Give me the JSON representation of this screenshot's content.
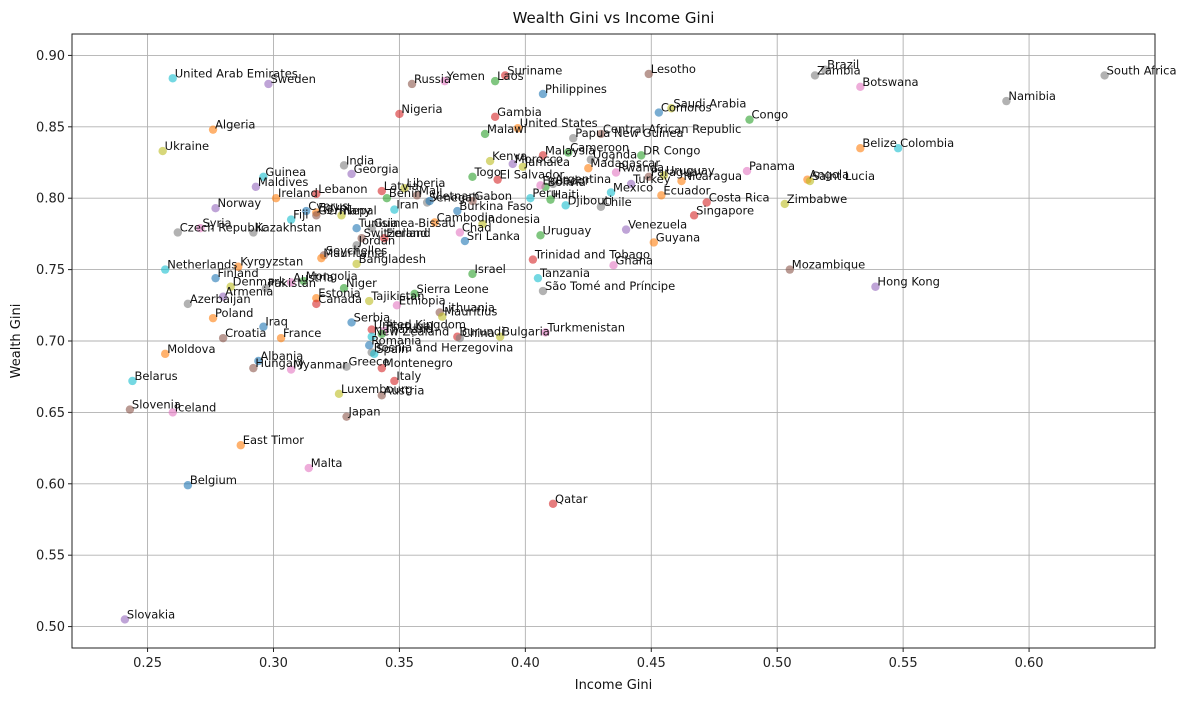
{
  "chart_data": {
    "type": "scatter",
    "title": "Wealth Gini vs Income Gini",
    "xlabel": "Income Gini",
    "ylabel": "Wealth Gini",
    "xlim": [
      0.22,
      0.65
    ],
    "ylim": [
      0.485,
      0.915
    ],
    "xticks": [
      0.25,
      0.3,
      0.35,
      0.4,
      0.45,
      0.5,
      0.55,
      0.6
    ],
    "xtick_labels": [
      "0.25",
      "0.30",
      "0.35",
      "0.40",
      "0.45",
      "0.50",
      "0.55",
      "0.60"
    ],
    "yticks": [
      0.5,
      0.55,
      0.6,
      0.65,
      0.7,
      0.75,
      0.8,
      0.85,
      0.9
    ],
    "ytick_labels": [
      "0.50",
      "0.55",
      "0.60",
      "0.65",
      "0.70",
      "0.75",
      "0.80",
      "0.85",
      "0.90"
    ],
    "grid": true,
    "palette": [
      "#1f77b4",
      "#ff7f0e",
      "#2ca02c",
      "#d62728",
      "#9467bd",
      "#8c564b",
      "#e377c2",
      "#7f7f7f",
      "#bcbd22",
      "#17becf"
    ],
    "points": [
      {
        "label": "United Arab Emirates",
        "x": 0.26,
        "y": 0.884,
        "c": 9
      },
      {
        "label": "Sweden",
        "x": 0.298,
        "y": 0.88,
        "c": 4
      },
      {
        "label": "Russia",
        "x": 0.355,
        "y": 0.88,
        "c": 5
      },
      {
        "label": "Yemen",
        "x": 0.368,
        "y": 0.882,
        "c": 6
      },
      {
        "label": "Laos",
        "x": 0.388,
        "y": 0.882,
        "c": 2
      },
      {
        "label": "Suriname",
        "x": 0.392,
        "y": 0.886,
        "c": 3
      },
      {
        "label": "Philippines",
        "x": 0.407,
        "y": 0.873,
        "c": 0
      },
      {
        "label": "Lesotho",
        "x": 0.449,
        "y": 0.887,
        "c": 5
      },
      {
        "label": "Brazil",
        "x": 0.519,
        "y": 0.89,
        "c": 7
      },
      {
        "label": "Zambia",
        "x": 0.515,
        "y": 0.886,
        "c": 7
      },
      {
        "label": "Botswana",
        "x": 0.533,
        "y": 0.878,
        "c": 6
      },
      {
        "label": "South Africa",
        "x": 0.63,
        "y": 0.886,
        "c": 7
      },
      {
        "label": "Namibia",
        "x": 0.591,
        "y": 0.868,
        "c": 7
      },
      {
        "label": "Nigeria",
        "x": 0.35,
        "y": 0.859,
        "c": 3
      },
      {
        "label": "Gambia",
        "x": 0.388,
        "y": 0.857,
        "c": 3
      },
      {
        "label": "United States",
        "x": 0.397,
        "y": 0.849,
        "c": 1
      },
      {
        "label": "Malawi",
        "x": 0.384,
        "y": 0.845,
        "c": 2
      },
      {
        "label": "Algeria",
        "x": 0.276,
        "y": 0.848,
        "c": 1
      },
      {
        "label": "Papua New Guinea",
        "x": 0.419,
        "y": 0.842,
        "c": 7
      },
      {
        "label": "Central African Republic",
        "x": 0.43,
        "y": 0.845,
        "c": 5
      },
      {
        "label": "Comoros",
        "x": 0.453,
        "y": 0.86,
        "c": 0
      },
      {
        "label": "Saudi Arabia",
        "x": 0.458,
        "y": 0.863,
        "c": 8
      },
      {
        "label": "Congo",
        "x": 0.489,
        "y": 0.855,
        "c": 2
      },
      {
        "label": "Ukraine",
        "x": 0.256,
        "y": 0.833,
        "c": 8
      },
      {
        "label": "Belize",
        "x": 0.533,
        "y": 0.835,
        "c": 1
      },
      {
        "label": "Colombia",
        "x": 0.548,
        "y": 0.835,
        "c": 9
      },
      {
        "label": "India",
        "x": 0.328,
        "y": 0.823,
        "c": 7
      },
      {
        "label": "Georgia",
        "x": 0.331,
        "y": 0.817,
        "c": 4
      },
      {
        "label": "Guinea",
        "x": 0.296,
        "y": 0.815,
        "c": 9
      },
      {
        "label": "Maldives",
        "x": 0.293,
        "y": 0.808,
        "c": 4
      },
      {
        "label": "Togo",
        "x": 0.379,
        "y": 0.815,
        "c": 2
      },
      {
        "label": "Kenya",
        "x": 0.386,
        "y": 0.826,
        "c": 8
      },
      {
        "label": "Morocco",
        "x": 0.395,
        "y": 0.824,
        "c": 4
      },
      {
        "label": "Jamaica",
        "x": 0.399,
        "y": 0.822,
        "c": 8
      },
      {
        "label": "Malaysia",
        "x": 0.407,
        "y": 0.83,
        "c": 3
      },
      {
        "label": "Cameroon",
        "x": 0.417,
        "y": 0.832,
        "c": 2
      },
      {
        "label": "Uganda",
        "x": 0.426,
        "y": 0.827,
        "c": 7
      },
      {
        "label": "Madagascar",
        "x": 0.425,
        "y": 0.821,
        "c": 1
      },
      {
        "label": "DR Congo",
        "x": 0.446,
        "y": 0.83,
        "c": 2
      },
      {
        "label": "El Salvador",
        "x": 0.389,
        "y": 0.813,
        "c": 3
      },
      {
        "label": "Rwanda",
        "x": 0.436,
        "y": 0.818,
        "c": 6
      },
      {
        "label": "Paraguay",
        "x": 0.449,
        "y": 0.815,
        "c": 5
      },
      {
        "label": "Uruguay",
        "x": 0.455,
        "y": 0.816,
        "c": 8
      },
      {
        "label": "Nicaragua",
        "x": 0.462,
        "y": 0.812,
        "c": 1
      },
      {
        "label": "Panama",
        "x": 0.488,
        "y": 0.819,
        "c": 6
      },
      {
        "label": "Angola",
        "x": 0.512,
        "y": 0.813,
        "c": 1
      },
      {
        "label": "Saint Lucia",
        "x": 0.513,
        "y": 0.812,
        "c": 8
      },
      {
        "label": "Bolivia",
        "x": 0.408,
        "y": 0.808,
        "c": 2
      },
      {
        "label": "Ecuador",
        "x": 0.406,
        "y": 0.809,
        "c": 6
      },
      {
        "label": "Argentina",
        "x": 0.411,
        "y": 0.81,
        "c": 7
      },
      {
        "label": "Turkey",
        "x": 0.442,
        "y": 0.81,
        "c": 4
      },
      {
        "label": "Lebanon",
        "x": 0.317,
        "y": 0.803,
        "c": 3
      },
      {
        "label": "Ireland",
        "x": 0.301,
        "y": 0.8,
        "c": 1
      },
      {
        "label": "Latvia",
        "x": 0.343,
        "y": 0.805,
        "c": 3
      },
      {
        "label": "Liberia",
        "x": 0.352,
        "y": 0.807,
        "c": 8
      },
      {
        "label": "Benin",
        "x": 0.345,
        "y": 0.8,
        "c": 2
      },
      {
        "label": "Mali",
        "x": 0.357,
        "y": 0.802,
        "c": 5
      },
      {
        "label": "Senegal",
        "x": 0.361,
        "y": 0.797,
        "c": 7
      },
      {
        "label": "Vietnam",
        "x": 0.362,
        "y": 0.798,
        "c": 0
      },
      {
        "label": "Gabon",
        "x": 0.379,
        "y": 0.798,
        "c": 5
      },
      {
        "label": "Peru",
        "x": 0.402,
        "y": 0.8,
        "c": 9
      },
      {
        "label": "Haiti",
        "x": 0.41,
        "y": 0.799,
        "c": 2
      },
      {
        "label": "Djibouti",
        "x": 0.416,
        "y": 0.795,
        "c": 9
      },
      {
        "label": "Mexico",
        "x": 0.434,
        "y": 0.804,
        "c": 9
      },
      {
        "label": "Chile",
        "x": 0.43,
        "y": 0.794,
        "c": 7
      },
      {
        "label": "Ecuador",
        "x": 0.454,
        "y": 0.802,
        "c": 1
      },
      {
        "label": "Costa Rica",
        "x": 0.472,
        "y": 0.797,
        "c": 3
      },
      {
        "label": "Zimbabwe",
        "x": 0.503,
        "y": 0.796,
        "c": 8
      },
      {
        "label": "Norway",
        "x": 0.277,
        "y": 0.793,
        "c": 4
      },
      {
        "label": "Cyprus",
        "x": 0.313,
        "y": 0.791,
        "c": 0
      },
      {
        "label": "Egypt",
        "x": 0.317,
        "y": 0.79,
        "c": 1
      },
      {
        "label": "Germany",
        "x": 0.317,
        "y": 0.788,
        "c": 5
      },
      {
        "label": "Nepal",
        "x": 0.327,
        "y": 0.788,
        "c": 8
      },
      {
        "label": "Fiji",
        "x": 0.307,
        "y": 0.785,
        "c": 9
      },
      {
        "label": "Iran",
        "x": 0.348,
        "y": 0.792,
        "c": 9
      },
      {
        "label": "Cambodia",
        "x": 0.364,
        "y": 0.783,
        "c": 1
      },
      {
        "label": "Indonesia",
        "x": 0.383,
        "y": 0.782,
        "c": 8
      },
      {
        "label": "Burkina Faso",
        "x": 0.373,
        "y": 0.791,
        "c": 0
      },
      {
        "label": "Singapore",
        "x": 0.467,
        "y": 0.788,
        "c": 3
      },
      {
        "label": "Syria",
        "x": 0.271,
        "y": 0.779,
        "c": 6
      },
      {
        "label": "Czech Republic",
        "x": 0.262,
        "y": 0.776,
        "c": 7
      },
      {
        "label": "Kazakhstan",
        "x": 0.292,
        "y": 0.776,
        "c": 7
      },
      {
        "label": "Guinea-Bissau",
        "x": 0.339,
        "y": 0.779,
        "c": 7
      },
      {
        "label": "Tunisia",
        "x": 0.333,
        "y": 0.779,
        "c": 0
      },
      {
        "label": "Switzerland",
        "x": 0.335,
        "y": 0.772,
        "c": 5
      },
      {
        "label": "Finland",
        "x": 0.344,
        "y": 0.772,
        "c": 3
      },
      {
        "label": "Jordan",
        "x": 0.333,
        "y": 0.767,
        "c": 7
      },
      {
        "label": "Chad",
        "x": 0.374,
        "y": 0.776,
        "c": 6
      },
      {
        "label": "Sri Lanka",
        "x": 0.376,
        "y": 0.77,
        "c": 0
      },
      {
        "label": "Uruguay",
        "x": 0.406,
        "y": 0.774,
        "c": 2
      },
      {
        "label": "Venezuela",
        "x": 0.44,
        "y": 0.778,
        "c": 4
      },
      {
        "label": "Guyana",
        "x": 0.451,
        "y": 0.769,
        "c": 1
      },
      {
        "label": "Seychelles",
        "x": 0.32,
        "y": 0.76,
        "c": 5
      },
      {
        "label": "Mauritania",
        "x": 0.319,
        "y": 0.758,
        "c": 1
      },
      {
        "label": "Bangladesh",
        "x": 0.333,
        "y": 0.754,
        "c": 8
      },
      {
        "label": "Trinidad and Tobago",
        "x": 0.403,
        "y": 0.757,
        "c": 3
      },
      {
        "label": "Ghana",
        "x": 0.435,
        "y": 0.753,
        "c": 6
      },
      {
        "label": "Netherlands",
        "x": 0.257,
        "y": 0.75,
        "c": 9
      },
      {
        "label": "Kyrgyzstan",
        "x": 0.286,
        "y": 0.752,
        "c": 1
      },
      {
        "label": "Finland",
        "x": 0.277,
        "y": 0.744,
        "c": 0
      },
      {
        "label": "Israel",
        "x": 0.379,
        "y": 0.747,
        "c": 2
      },
      {
        "label": "Tanzania",
        "x": 0.405,
        "y": 0.744,
        "c": 9
      },
      {
        "label": "Mozambique",
        "x": 0.505,
        "y": 0.75,
        "c": 5
      },
      {
        "label": "Denmark",
        "x": 0.283,
        "y": 0.738,
        "c": 8
      },
      {
        "label": "Pakistan",
        "x": 0.297,
        "y": 0.737,
        "c": 7
      },
      {
        "label": "Austria",
        "x": 0.307,
        "y": 0.741,
        "c": 6
      },
      {
        "label": "Mongolia",
        "x": 0.312,
        "y": 0.742,
        "c": 2
      },
      {
        "label": "Niger",
        "x": 0.328,
        "y": 0.737,
        "c": 2
      },
      {
        "label": "Hong Kong",
        "x": 0.539,
        "y": 0.738,
        "c": 4
      },
      {
        "label": "Armenia",
        "x": 0.28,
        "y": 0.731,
        "c": 4
      },
      {
        "label": "Estonia",
        "x": 0.317,
        "y": 0.73,
        "c": 1
      },
      {
        "label": "Sierra Leone",
        "x": 0.356,
        "y": 0.733,
        "c": 2
      },
      {
        "label": "São Tomé and Príncipe",
        "x": 0.407,
        "y": 0.735,
        "c": 7
      },
      {
        "label": "Azerbaijan",
        "x": 0.266,
        "y": 0.726,
        "c": 7
      },
      {
        "label": "Canada",
        "x": 0.317,
        "y": 0.726,
        "c": 3
      },
      {
        "label": "Tajikistan",
        "x": 0.338,
        "y": 0.728,
        "c": 8
      },
      {
        "label": "Ethiopia",
        "x": 0.349,
        "y": 0.725,
        "c": 6
      },
      {
        "label": "Lithuania",
        "x": 0.366,
        "y": 0.72,
        "c": 5
      },
      {
        "label": "Mauritius",
        "x": 0.367,
        "y": 0.717,
        "c": 8
      },
      {
        "label": "Poland",
        "x": 0.276,
        "y": 0.716,
        "c": 1
      },
      {
        "label": "Iraq",
        "x": 0.296,
        "y": 0.71,
        "c": 0
      },
      {
        "label": "Serbia",
        "x": 0.331,
        "y": 0.713,
        "c": 0
      },
      {
        "label": "United Kingdom",
        "x": 0.339,
        "y": 0.708,
        "c": 3
      },
      {
        "label": "Portugal",
        "x": 0.344,
        "y": 0.707,
        "c": 6
      },
      {
        "label": "Thailand",
        "x": 0.343,
        "y": 0.705,
        "c": 2
      },
      {
        "label": "Croatia",
        "x": 0.28,
        "y": 0.702,
        "c": 5
      },
      {
        "label": "France",
        "x": 0.303,
        "y": 0.702,
        "c": 1
      },
      {
        "label": "Burundi",
        "x": 0.373,
        "y": 0.703,
        "c": 3
      },
      {
        "label": "China",
        "x": 0.374,
        "y": 0.702,
        "c": 7
      },
      {
        "label": "New Zealand",
        "x": 0.339,
        "y": 0.703,
        "c": 9
      },
      {
        "label": "Bulgaria",
        "x": 0.39,
        "y": 0.703,
        "c": 8
      },
      {
        "label": "Turkmenistan",
        "x": 0.408,
        "y": 0.706,
        "c": 6
      },
      {
        "label": "Romania",
        "x": 0.338,
        "y": 0.697,
        "c": 0
      },
      {
        "label": "Bosnia and Herzegovina",
        "x": 0.339,
        "y": 0.692,
        "c": 7
      },
      {
        "label": "Spain",
        "x": 0.34,
        "y": 0.691,
        "c": 9
      },
      {
        "label": "Moldova",
        "x": 0.257,
        "y": 0.691,
        "c": 1
      },
      {
        "label": "Albania",
        "x": 0.294,
        "y": 0.686,
        "c": 0
      },
      {
        "label": "Hungary",
        "x": 0.292,
        "y": 0.681,
        "c": 5
      },
      {
        "label": "Myanmar",
        "x": 0.307,
        "y": 0.68,
        "c": 6
      },
      {
        "label": "Greece",
        "x": 0.329,
        "y": 0.682,
        "c": 7
      },
      {
        "label": "Montenegro",
        "x": 0.343,
        "y": 0.681,
        "c": 3
      },
      {
        "label": "Belarus",
        "x": 0.244,
        "y": 0.672,
        "c": 9
      },
      {
        "label": "Italy",
        "x": 0.348,
        "y": 0.672,
        "c": 3
      },
      {
        "label": "Luxembourg",
        "x": 0.326,
        "y": 0.663,
        "c": 8
      },
      {
        "label": "Austria",
        "x": 0.343,
        "y": 0.662,
        "c": 5
      },
      {
        "label": "Slovenia",
        "x": 0.243,
        "y": 0.652,
        "c": 5
      },
      {
        "label": "Iceland",
        "x": 0.26,
        "y": 0.65,
        "c": 6
      },
      {
        "label": "Japan",
        "x": 0.329,
        "y": 0.647,
        "c": 5
      },
      {
        "label": "East Timor",
        "x": 0.287,
        "y": 0.627,
        "c": 1
      },
      {
        "label": "Malta",
        "x": 0.314,
        "y": 0.611,
        "c": 6
      },
      {
        "label": "Belgium",
        "x": 0.266,
        "y": 0.599,
        "c": 0
      },
      {
        "label": "Qatar",
        "x": 0.411,
        "y": 0.586,
        "c": 3
      },
      {
        "label": "Slovakia",
        "x": 0.241,
        "y": 0.505,
        "c": 4
      }
    ]
  }
}
